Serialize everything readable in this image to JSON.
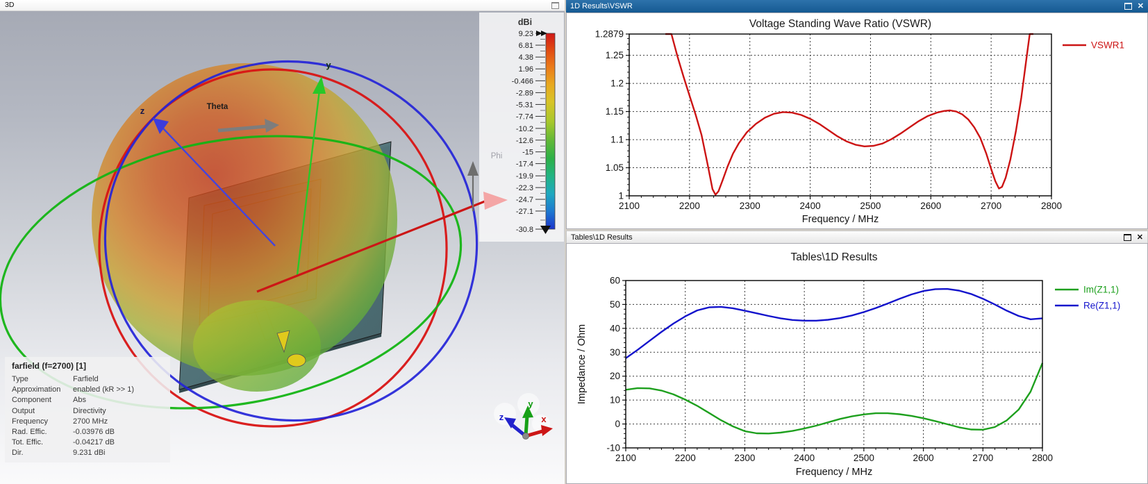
{
  "view3d": {
    "title": "3D",
    "colorbar": {
      "unit": "dBi",
      "tick_labels": [
        "9.23",
        "6.81",
        "4.38",
        "1.96",
        "-0.466",
        "-2.89",
        "-5.31",
        "-7.74",
        "-10.2",
        "-12.6",
        "-15",
        "-17.4",
        "-19.9",
        "-22.3",
        "-24.7",
        "-27.1",
        "-30.8"
      ],
      "tick_values": [
        9.23,
        6.81,
        4.38,
        1.96,
        -0.466,
        -2.89,
        -5.31,
        -7.74,
        -10.2,
        -12.6,
        -15,
        -17.4,
        -19.9,
        -22.3,
        -24.7,
        -27.1,
        -30.8
      ]
    },
    "scene_labels": {
      "z": "z",
      "y": "y",
      "theta": "Theta",
      "phi": "Phi"
    },
    "triad_labels": {
      "x": "x",
      "y": "y",
      "z": "z"
    },
    "info_box": {
      "title": "farfield (f=2700) [1]",
      "rows": [
        {
          "label": "Type",
          "value": "Farfield"
        },
        {
          "label": "Approximation",
          "value": "enabled (kR >> 1)"
        },
        {
          "label": "Component",
          "value": "Abs"
        },
        {
          "label": "Output",
          "value": "Directivity"
        },
        {
          "label": "Frequency",
          "value": "2700 MHz"
        },
        {
          "label": "Rad. Effic.",
          "value": "-0.03976 dB"
        },
        {
          "label": "Tot. Effic.",
          "value": "-0.04217 dB"
        },
        {
          "label": "Dir.",
          "value": "9.231 dBi"
        }
      ]
    }
  },
  "vswr_panel": {
    "title": "1D Results\\VSWR"
  },
  "tables_panel": {
    "title": "Tables\\1D Results"
  },
  "chart_data": [
    {
      "id": "vswr",
      "type": "line",
      "title": "Voltage Standing Wave Ratio (VSWR)",
      "xlabel": "Frequency / MHz",
      "ylabel": "",
      "xlim": [
        2100,
        2800
      ],
      "ylim": [
        1,
        1.2879
      ],
      "x_ticks": [
        2100,
        2200,
        2300,
        2400,
        2500,
        2600,
        2700,
        2800
      ],
      "y_tick_values": [
        1,
        1.05,
        1.1,
        1.15,
        1.2,
        1.25,
        1.2879
      ],
      "y_tick_labels": [
        "1",
        "1.05",
        "1.1",
        "1.15",
        "1.2",
        "1.25",
        "1.2879"
      ],
      "grid": true,
      "legend_position": "right",
      "series": [
        {
          "name": "VSWR1",
          "color": "#cc1414",
          "x": [
            2160,
            2170,
            2180,
            2190,
            2200,
            2210,
            2220,
            2230,
            2238,
            2243,
            2248,
            2255,
            2263,
            2272,
            2282,
            2295,
            2310,
            2325,
            2340,
            2355,
            2370,
            2385,
            2400,
            2415,
            2430,
            2445,
            2460,
            2475,
            2490,
            2505,
            2520,
            2535,
            2550,
            2565,
            2580,
            2595,
            2610,
            2622,
            2632,
            2642,
            2652,
            2662,
            2672,
            2682,
            2692,
            2700,
            2707,
            2713,
            2718,
            2724,
            2732,
            2741,
            2750,
            2758,
            2764,
            2770
          ],
          "y": [
            1.32,
            1.289,
            1.248,
            1.212,
            1.178,
            1.145,
            1.108,
            1.056,
            1.012,
            1.002,
            1.008,
            1.028,
            1.052,
            1.075,
            1.094,
            1.113,
            1.128,
            1.139,
            1.146,
            1.149,
            1.148,
            1.144,
            1.137,
            1.128,
            1.117,
            1.106,
            1.097,
            1.091,
            1.088,
            1.089,
            1.093,
            1.101,
            1.111,
            1.122,
            1.133,
            1.142,
            1.148,
            1.151,
            1.152,
            1.15,
            1.145,
            1.136,
            1.122,
            1.103,
            1.075,
            1.048,
            1.026,
            1.013,
            1.016,
            1.032,
            1.065,
            1.115,
            1.175,
            1.24,
            1.289,
            1.33
          ]
        }
      ]
    },
    {
      "id": "impedance",
      "type": "line",
      "title": "Tables\\1D Results",
      "xlabel": "Frequency / MHz",
      "ylabel": "Impedance / Ohm",
      "xlim": [
        2100,
        2800
      ],
      "ylim": [
        -10,
        60
      ],
      "x_ticks": [
        2100,
        2200,
        2300,
        2400,
        2500,
        2600,
        2700,
        2800
      ],
      "y_tick_values": [
        -10,
        0,
        10,
        20,
        30,
        40,
        50,
        60
      ],
      "y_tick_labels": [
        "-10",
        "0",
        "10",
        "20",
        "30",
        "40",
        "50",
        "60"
      ],
      "grid": true,
      "legend_position": "right",
      "series": [
        {
          "name": "Im(Z1,1)",
          "color": "#1ea01e",
          "x": [
            2100,
            2120,
            2140,
            2160,
            2180,
            2200,
            2220,
            2240,
            2260,
            2280,
            2300,
            2320,
            2340,
            2360,
            2380,
            2400,
            2420,
            2440,
            2460,
            2480,
            2500,
            2520,
            2540,
            2560,
            2580,
            2600,
            2620,
            2640,
            2660,
            2680,
            2700,
            2720,
            2740,
            2760,
            2780,
            2800
          ],
          "y": [
            14.3,
            15.0,
            14.9,
            14.0,
            12.4,
            10.2,
            7.6,
            4.6,
            1.6,
            -1.0,
            -3.0,
            -3.9,
            -4.0,
            -3.6,
            -2.9,
            -1.9,
            -0.7,
            0.7,
            2.1,
            3.2,
            4.0,
            4.5,
            4.5,
            4.1,
            3.4,
            2.4,
            1.2,
            -0.1,
            -1.4,
            -2.3,
            -2.4,
            -1.3,
            1.5,
            6.0,
            13.5,
            25.5
          ]
        },
        {
          "name": "Re(Z1,1)",
          "color": "#1414cc",
          "x": [
            2100,
            2120,
            2140,
            2160,
            2180,
            2200,
            2220,
            2240,
            2260,
            2280,
            2300,
            2320,
            2340,
            2360,
            2380,
            2400,
            2420,
            2440,
            2460,
            2480,
            2500,
            2520,
            2540,
            2560,
            2580,
            2600,
            2620,
            2640,
            2660,
            2680,
            2700,
            2720,
            2740,
            2760,
            2780,
            2800
          ],
          "y": [
            27.5,
            31.0,
            34.8,
            38.5,
            42.0,
            45.0,
            47.5,
            48.8,
            49.0,
            48.4,
            47.4,
            46.3,
            45.2,
            44.2,
            43.5,
            43.2,
            43.2,
            43.6,
            44.3,
            45.4,
            46.8,
            48.5,
            50.4,
            52.4,
            54.2,
            55.6,
            56.4,
            56.5,
            55.8,
            54.4,
            52.4,
            50.0,
            47.4,
            45.2,
            43.8,
            44.2
          ]
        }
      ]
    }
  ]
}
